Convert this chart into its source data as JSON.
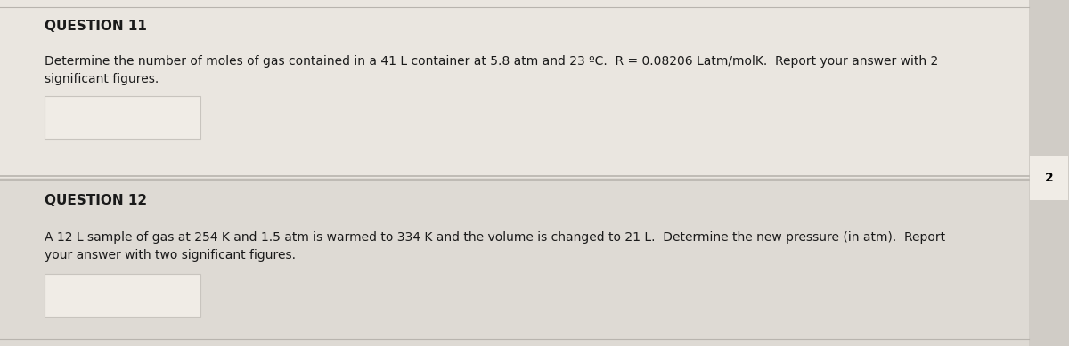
{
  "bg_color": "#e8e4de",
  "q11_bg": "#e8e4de",
  "q12_bg": "#e0dcd6",
  "side_bg": "#d8d4ce",
  "side_num_bg": "#f0ece6",
  "divider_color": "#b8b4ae",
  "q11_header": "QUESTION 11",
  "q11_body": "Determine the number of moles of gas contained in a 41 L container at 5.8 atm and 23 ºC.  R = 0.08206 Latm/molK.  Report your answer with 2\nsignificant figures.",
  "q12_header": "QUESTION 12",
  "q12_body": "A 12 L sample of gas at 254 K and 1.5 atm is warmed to 334 K and the volume is changed to 21 L.  Determine the new pressure (in atm).  Report\nyour answer with two significant figures.",
  "side_number": "2",
  "header_fontsize": 11,
  "body_fontsize": 10,
  "input_box_color": "#f0ece6",
  "input_box_border": "#c8c4be"
}
